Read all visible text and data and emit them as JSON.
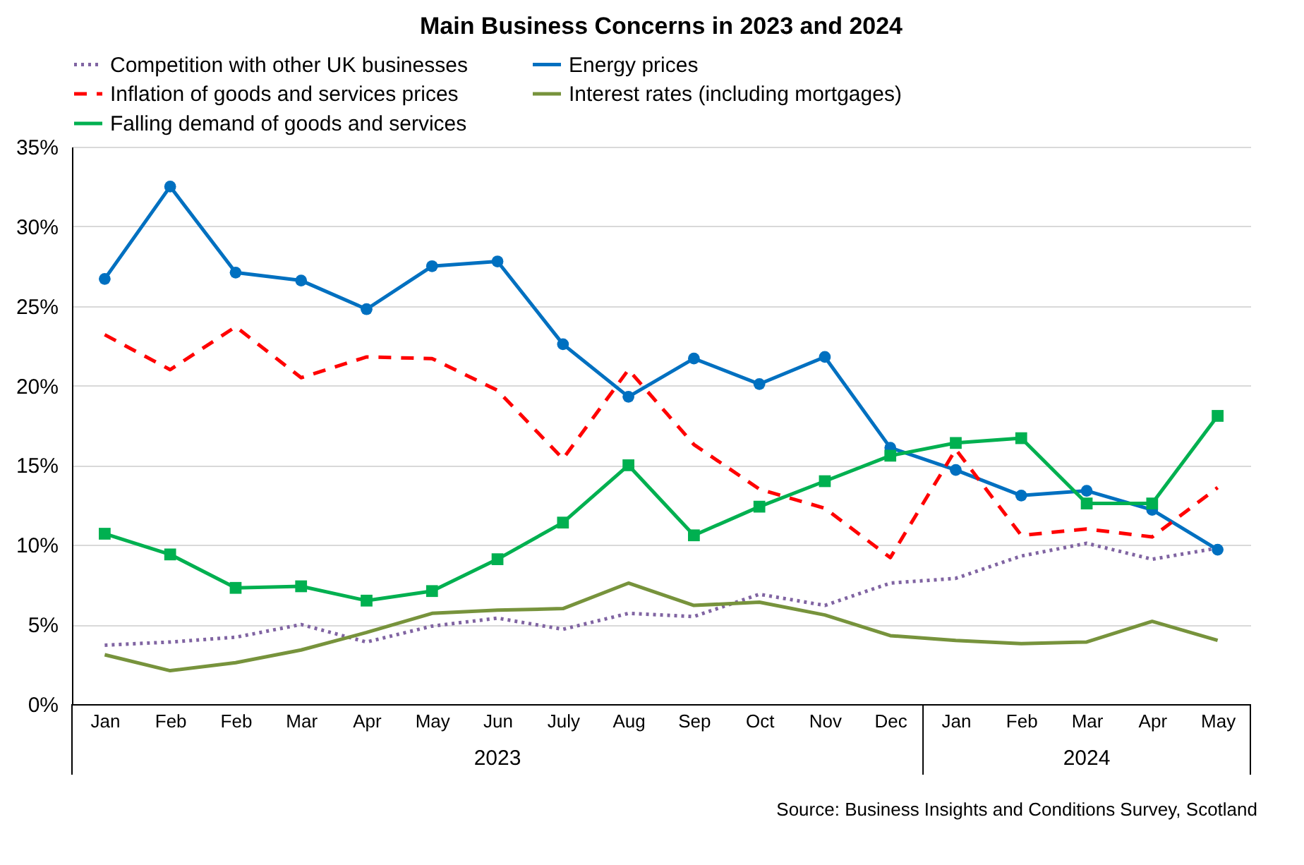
{
  "chart_data": {
    "type": "line",
    "title": "Main Business Concerns in 2023 and 2024",
    "categories": [
      "Jan",
      "Feb",
      "Feb",
      "Mar",
      "Apr",
      "May",
      "Jun",
      "July",
      "Aug",
      "Sep",
      "Oct",
      "Nov",
      "Dec",
      "Jan",
      "Feb",
      "Mar",
      "Apr",
      "May"
    ],
    "series": [
      {
        "name": "Competition with other UK businesses",
        "color": "#8064a2",
        "line_style": "dotted",
        "marker": "none",
        "values": [
          3.7,
          3.9,
          4.2,
          5.0,
          3.9,
          4.9,
          5.4,
          4.7,
          5.7,
          5.5,
          6.9,
          6.2,
          7.6,
          7.9,
          9.3,
          10.1,
          9.1,
          9.8
        ]
      },
      {
        "name": "Energy prices",
        "color": "#0070c0",
        "line_style": "solid",
        "marker": "circle",
        "values": [
          26.7,
          32.5,
          27.1,
          26.6,
          24.8,
          27.5,
          27.8,
          22.6,
          19.3,
          21.7,
          20.1,
          21.8,
          16.1,
          14.7,
          13.1,
          13.4,
          12.2,
          9.7
        ]
      },
      {
        "name": "Inflation of goods and services prices",
        "color": "#ff0000",
        "line_style": "dashed",
        "marker": "none",
        "values": [
          23.2,
          21.0,
          23.7,
          20.5,
          21.8,
          21.7,
          19.7,
          15.4,
          21.0,
          16.3,
          13.5,
          12.3,
          9.2,
          16.0,
          10.6,
          11.0,
          10.5,
          13.6
        ]
      },
      {
        "name": "Interest rates (including mortgages)",
        "color": "#77933c",
        "line_style": "solid",
        "marker": "none",
        "values": [
          3.1,
          2.1,
          2.6,
          3.4,
          4.5,
          5.7,
          5.9,
          6.0,
          7.6,
          6.2,
          6.4,
          5.6,
          4.3,
          4.0,
          3.8,
          3.9,
          5.2,
          4.0
        ]
      },
      {
        "name": "Falling demand of goods and services",
        "color": "#00b050",
        "line_style": "solid",
        "marker": "square",
        "values": [
          10.7,
          9.4,
          7.3,
          7.4,
          6.5,
          7.1,
          9.1,
          11.4,
          15.0,
          10.6,
          12.4,
          14.0,
          15.6,
          16.4,
          16.7,
          12.6,
          12.6,
          18.1
        ]
      }
    ],
    "ylim": [
      0,
      35
    ],
    "yticks": [
      {
        "value": 0,
        "label": "0%"
      },
      {
        "value": 5,
        "label": "5%"
      },
      {
        "value": 10,
        "label": "10%"
      },
      {
        "value": 15,
        "label": "15%"
      },
      {
        "value": 20,
        "label": "20%"
      },
      {
        "value": 25,
        "label": "25%"
      },
      {
        "value": 30,
        "label": "30%"
      },
      {
        "value": 35,
        "label": "35%"
      }
    ],
    "grid": "y",
    "legend": "top",
    "annotations": [
      "2023",
      "2024",
      "Source: Business Insights and Conditions Survey, Scotland"
    ]
  }
}
